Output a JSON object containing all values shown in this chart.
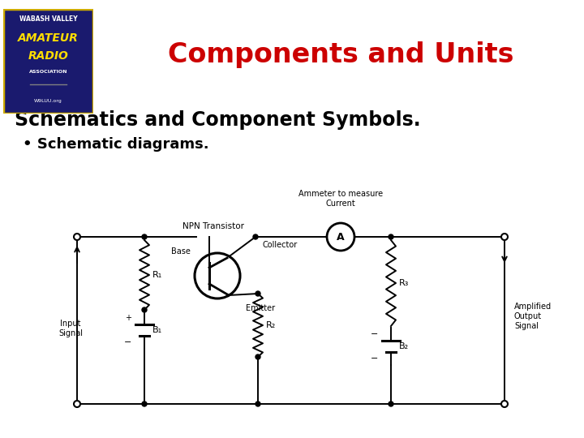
{
  "title": "Components and Units",
  "subtitle": "Schematics and Component Symbols.",
  "bullet": "Schematic diagrams.",
  "title_color": "#cc0000",
  "subtitle_color": "#000000",
  "bullet_color": "#000000",
  "bg_color": "#ffffff",
  "circuit_labels": {
    "npn": "NPN Transistor",
    "ammeter": "Ammeter to measure\nCurrent",
    "collector": "Collector",
    "base": "Base",
    "emitter": "Emitter",
    "r1": "R₁",
    "r2": "R₂",
    "r3": "R₃",
    "b1": "B₁",
    "b2": "B₂",
    "input": "Input\nSignal",
    "output": "Amplified\nOutput\nSignal",
    "plus": "+",
    "minus": "−"
  }
}
